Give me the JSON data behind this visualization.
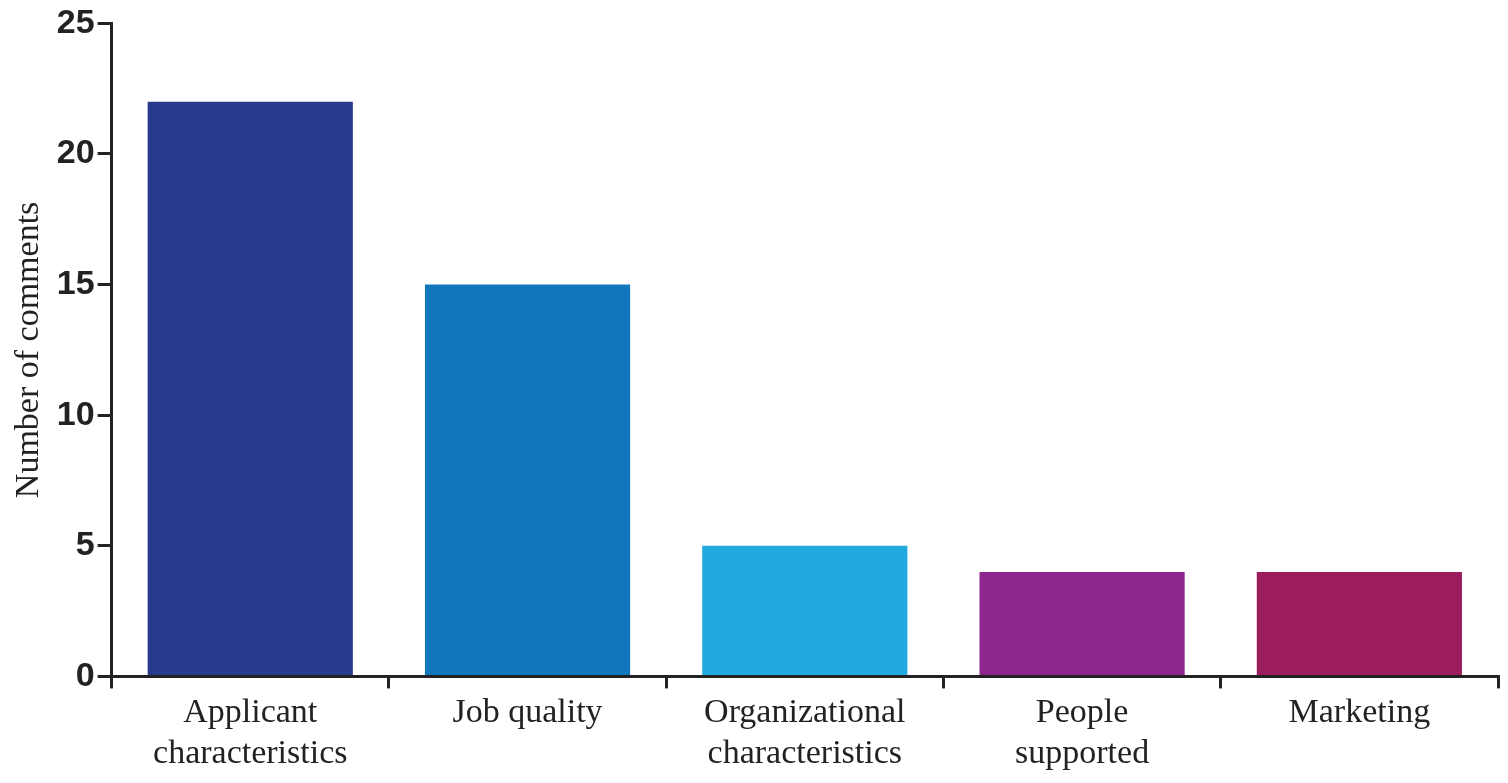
{
  "chart_data": {
    "type": "bar",
    "ylabel": "Number of comments",
    "categories": [
      "Applicant characteristics",
      "Job quality",
      "Organizational characteristics",
      "People supported",
      "Marketing"
    ],
    "values": [
      22,
      15,
      5,
      4,
      4
    ],
    "colors": [
      "#283a8c",
      "#1177bd",
      "#22a9e0",
      "#8e278d",
      "#9c1d5e"
    ],
    "ylim": [
      0,
      25
    ],
    "yticks": [
      0,
      5,
      10,
      15,
      20,
      25
    ],
    "grid": false,
    "legend": false
  }
}
